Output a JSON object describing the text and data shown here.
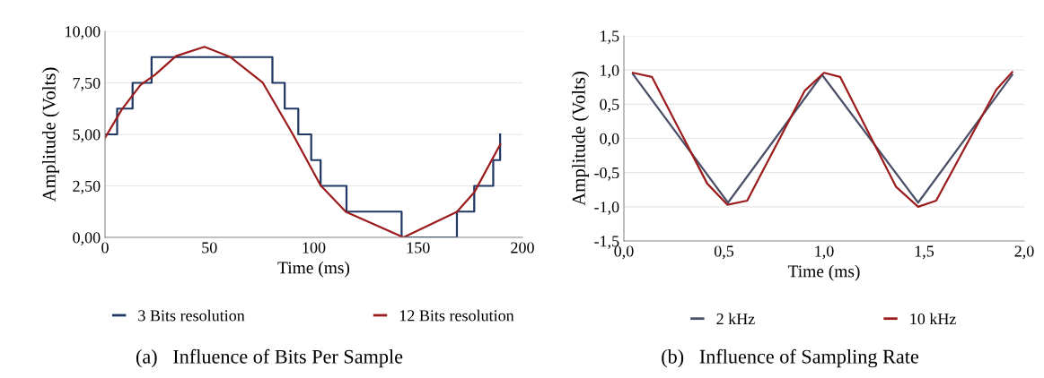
{
  "chart_data": [
    {
      "type": "line",
      "xlabel": "Time (ms)",
      "ylabel": "Amplitude (Volts)",
      "xlim": [
        0,
        200
      ],
      "xticks": [
        0,
        50,
        100,
        150,
        200
      ],
      "ylim": [
        0,
        10
      ],
      "yticks": [
        {
          "value": 0,
          "label": "0,00"
        },
        {
          "value": 2.5,
          "label": "2,50"
        },
        {
          "value": 5,
          "label": "5,00"
        },
        {
          "value": 7.5,
          "label": "7,50"
        },
        {
          "value": 10,
          "label": "10,00"
        }
      ],
      "grid": "y",
      "legend": "bottom",
      "marker": "none",
      "line_style": "solid",
      "annotations": [
        "(a)   Influence of Bits Per Sample"
      ],
      "series": [
        {
          "name": "3 Bits resolution",
          "type": "step",
          "color": "#1f3864",
          "x": [
            0,
            5.8,
            13.2,
            22.3,
            80.2,
            86.1,
            92.6,
            98.8,
            103.3,
            115.7,
            142.1,
            168.6,
            176.9,
            186,
            189.3
          ],
          "values": [
            5,
            6.25,
            7.5,
            8.75,
            7.5,
            6.25,
            5,
            3.75,
            2.5,
            1.25,
            0,
            1.25,
            2.5,
            3.75,
            5
          ]
        },
        {
          "name": "12 Bits resolution",
          "type": "line",
          "color": "#9b1c1c",
          "x": [
            0,
            8,
            17,
            24,
            34,
            47.6,
            60,
            75.5,
            90,
            103.3,
            115.4,
            143,
            168.6,
            177,
            189.3
          ],
          "values": [
            4.83,
            6.2,
            7.4,
            7.9,
            8.8,
            9.25,
            8.76,
            7.52,
            5.0,
            2.52,
            1.24,
            0,
            1.24,
            2.2,
            4.5
          ]
        }
      ]
    },
    {
      "type": "line",
      "xlabel": "Time (ms)",
      "ylabel": "Amplitude (Volts)",
      "xlim": [
        0,
        2
      ],
      "xticks": [
        {
          "value": 0,
          "label": "0,0"
        },
        {
          "value": 0.5,
          "label": "0,5"
        },
        {
          "value": 1,
          "label": "1,0"
        },
        {
          "value": 1.5,
          "label": "1,5"
        },
        {
          "value": 2,
          "label": "2,0"
        }
      ],
      "ylim": [
        -1.5,
        1.5
      ],
      "yticks": [
        {
          "value": -1.5,
          "label": "-1,5"
        },
        {
          "value": -1,
          "label": "-1,0"
        },
        {
          "value": -0.5,
          "label": "-0,5"
        },
        {
          "value": 0,
          "label": "0,0"
        },
        {
          "value": 0.5,
          "label": "0,5"
        },
        {
          "value": 1,
          "label": "1,0"
        },
        {
          "value": 1.5,
          "label": "1,5"
        }
      ],
      "grid": "y",
      "legend": "bottom",
      "marker": "none",
      "line_style": "solid",
      "annotations": [
        "(b)   Influence of Sampling Rate"
      ],
      "series": [
        {
          "name": "2 kHz",
          "color": "#4a5068",
          "x": [
            0.045,
            0.52,
            0.99,
            1.47,
            1.94
          ],
          "values": [
            0.94,
            -0.94,
            0.93,
            -0.94,
            0.93
          ]
        },
        {
          "name": "10 kHz",
          "color": "#9b1c1c",
          "x": [
            0.045,
            0.14,
            0.416,
            0.517,
            0.616,
            0.904,
            1.0,
            1.08,
            1.36,
            1.47,
            1.56,
            1.86,
            1.94
          ],
          "values": [
            0.96,
            0.9,
            -0.66,
            -0.97,
            -0.91,
            0.7,
            0.96,
            0.9,
            -0.71,
            -1.0,
            -0.91,
            0.71,
            0.97
          ]
        }
      ]
    }
  ]
}
